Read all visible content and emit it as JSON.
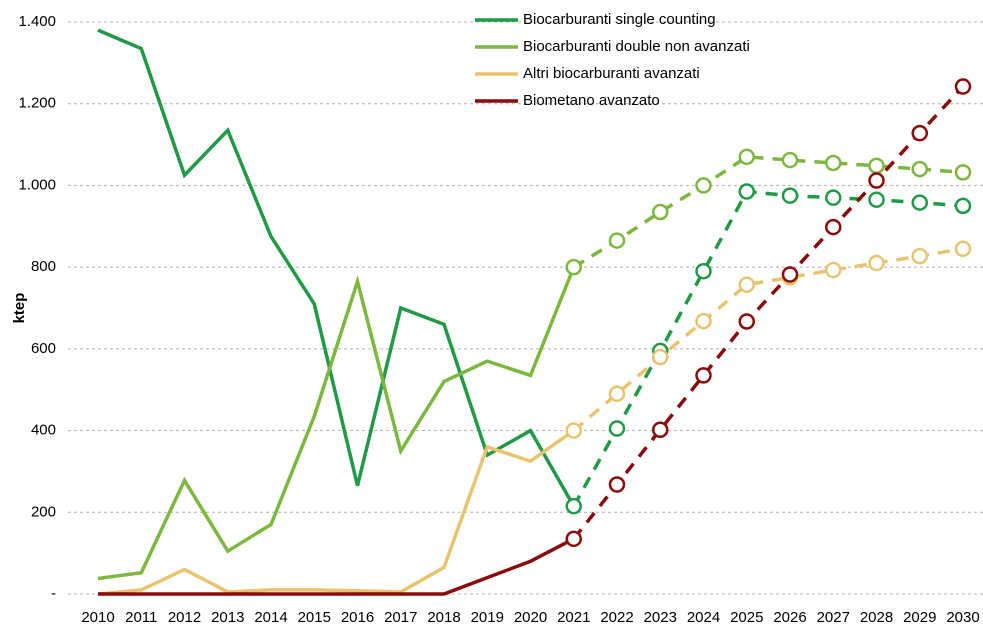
{
  "chart_data": {
    "type": "line",
    "y_label": "ktep",
    "categories": [
      "2010",
      "2011",
      "2012",
      "2013",
      "2014",
      "2015",
      "2016",
      "2017",
      "2018",
      "2019",
      "2020",
      "2021",
      "2022",
      "2023",
      "2024",
      "2025",
      "2026",
      "2027",
      "2028",
      "2029",
      "2030"
    ],
    "dashed_from": "2021",
    "ylim": [
      0,
      1400
    ],
    "yticks": [
      {
        "value": 0,
        "label": "-"
      },
      200,
      400,
      600,
      800,
      {
        "value": 1000,
        "label": "1.000"
      },
      {
        "value": 1200,
        "label": "1.200"
      },
      {
        "value": 1400,
        "label": "1.400"
      }
    ],
    "grid": true,
    "legend": "top",
    "series": [
      {
        "name": "Biocarburanti single counting",
        "color": "#1f9a45",
        "values": [
          1380,
          1335,
          1025,
          1135,
          875,
          710,
          265,
          700,
          660,
          340,
          400,
          215,
          405,
          595,
          790,
          985,
          975,
          970,
          965,
          958,
          950
        ]
      },
      {
        "name": "Biocarburanti double non avanzati",
        "color": "#7cb83e",
        "values": [
          38,
          52,
          278,
          105,
          170,
          435,
          765,
          350,
          520,
          570,
          535,
          800,
          865,
          935,
          1000,
          1070,
          1062,
          1055,
          1048,
          1040,
          1032
        ]
      },
      {
        "name": "Altri biocarburanti avanzati",
        "color": "#e9c46e",
        "values": [
          0,
          10,
          60,
          5,
          10,
          10,
          8,
          5,
          65,
          360,
          325,
          400,
          490,
          580,
          668,
          757,
          775,
          793,
          810,
          827,
          845
        ]
      },
      {
        "name": "Biometano avanzato",
        "color": "#8b0a0a",
        "values": [
          0,
          0,
          0,
          0,
          0,
          0,
          0,
          0,
          0,
          40,
          80,
          135,
          268,
          402,
          535,
          667,
          782,
          898,
          1012,
          1128,
          1242
        ]
      }
    ]
  }
}
